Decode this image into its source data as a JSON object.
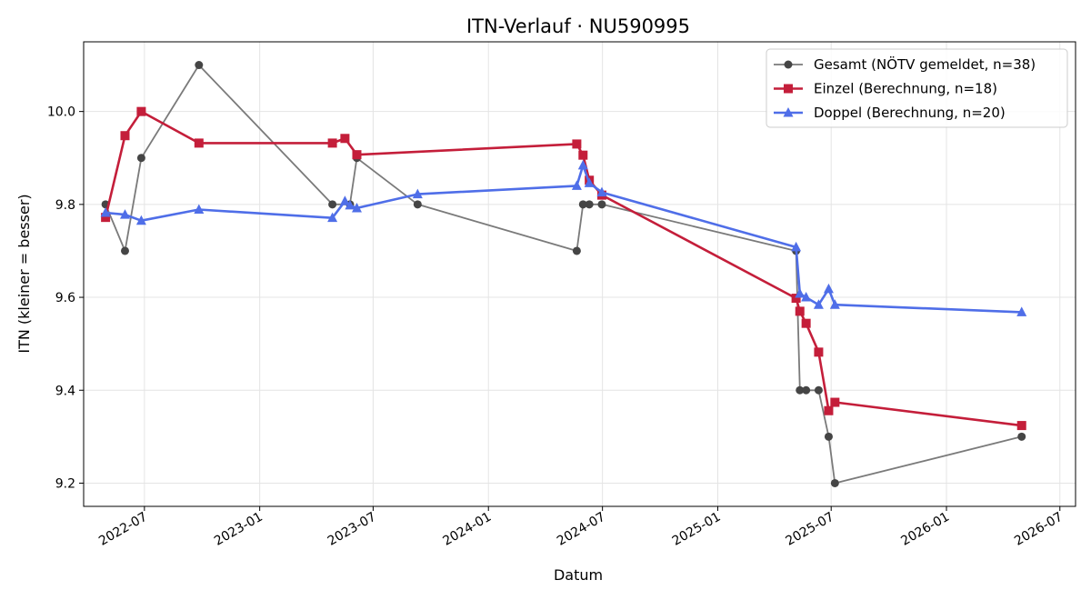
{
  "chart_data": {
    "type": "line",
    "title": "ITN-Verlauf · NU590995",
    "xlabel": "Datum",
    "ylabel": "ITN  (kleiner = besser)",
    "x_axis_kind": "date",
    "xlim": [
      "2022-03-26",
      "2026-07-26"
    ],
    "ylim": [
      9.15,
      10.15
    ],
    "x_ticks": [
      "2022-07-01",
      "2023-01-01",
      "2023-07-01",
      "2024-01-01",
      "2024-07-01",
      "2025-01-01",
      "2025-07-01",
      "2026-01-01",
      "2026-07-01"
    ],
    "x_tick_labels": [
      "2022-07",
      "2023-01",
      "2023-07",
      "2024-01",
      "2024-07",
      "2025-01",
      "2025-07",
      "2026-01",
      "2026-07"
    ],
    "y_ticks": [
      9.2,
      9.4,
      9.6,
      9.8,
      10.0
    ],
    "y_tick_labels": [
      "9.2",
      "9.4",
      "9.6",
      "9.8",
      "10.0"
    ],
    "grid": true,
    "legend_position": "top-right",
    "series": [
      {
        "name": "Gesamt (NÖTV gemeldet, n=38)",
        "color": "#7a7a7a",
        "marker_color": "#454545",
        "marker": "circle",
        "points": [
          {
            "x": "2022-04-30",
            "y": 9.8
          },
          {
            "x": "2022-05-31",
            "y": 9.7
          },
          {
            "x": "2022-06-26",
            "y": 9.9
          },
          {
            "x": "2022-09-26",
            "y": 10.1
          },
          {
            "x": "2023-04-27",
            "y": 9.8
          },
          {
            "x": "2023-05-25",
            "y": 9.8
          },
          {
            "x": "2023-06-05",
            "y": 9.9
          },
          {
            "x": "2023-09-10",
            "y": 9.8
          },
          {
            "x": "2024-05-21",
            "y": 9.7
          },
          {
            "x": "2024-05-31",
            "y": 9.8
          },
          {
            "x": "2024-06-10",
            "y": 9.8
          },
          {
            "x": "2024-06-30",
            "y": 9.8
          },
          {
            "x": "2025-05-06",
            "y": 9.7
          },
          {
            "x": "2025-05-12",
            "y": 9.4
          },
          {
            "x": "2025-05-22",
            "y": 9.4
          },
          {
            "x": "2025-06-11",
            "y": 9.4
          },
          {
            "x": "2025-06-27",
            "y": 9.3
          },
          {
            "x": "2025-07-07",
            "y": 9.2
          },
          {
            "x": "2026-05-01",
            "y": 9.3
          }
        ]
      },
      {
        "name": "Einzel (Berechnung, n=18)",
        "color": "#c41e3a",
        "marker_color": "#c41e3a",
        "marker": "square",
        "points": [
          {
            "x": "2022-04-30",
            "y": 9.772
          },
          {
            "x": "2022-05-31",
            "y": 9.948
          },
          {
            "x": "2022-06-26",
            "y": 10.0
          },
          {
            "x": "2022-09-26",
            "y": 9.932
          },
          {
            "x": "2023-04-27",
            "y": 9.932
          },
          {
            "x": "2023-05-17",
            "y": 9.942
          },
          {
            "x": "2023-06-05",
            "y": 9.907
          },
          {
            "x": "2024-05-21",
            "y": 9.93
          },
          {
            "x": "2024-05-31",
            "y": 9.906
          },
          {
            "x": "2024-06-10",
            "y": 9.852
          },
          {
            "x": "2024-06-30",
            "y": 9.82
          },
          {
            "x": "2025-05-06",
            "y": 9.598
          },
          {
            "x": "2025-05-12",
            "y": 9.57
          },
          {
            "x": "2025-05-22",
            "y": 9.544
          },
          {
            "x": "2025-06-11",
            "y": 9.482
          },
          {
            "x": "2025-06-27",
            "y": 9.356
          },
          {
            "x": "2025-07-07",
            "y": 9.374
          },
          {
            "x": "2026-05-01",
            "y": 9.324
          }
        ]
      },
      {
        "name": "Doppel (Berechnung, n=20)",
        "color": "#4f6ee8",
        "marker_color": "#4f6ee8",
        "marker": "triangle",
        "points": [
          {
            "x": "2022-04-30",
            "y": 9.782
          },
          {
            "x": "2022-05-31",
            "y": 9.778
          },
          {
            "x": "2022-06-26",
            "y": 9.765
          },
          {
            "x": "2022-09-26",
            "y": 9.789
          },
          {
            "x": "2023-04-27",
            "y": 9.771
          },
          {
            "x": "2023-05-17",
            "y": 9.807
          },
          {
            "x": "2023-05-25",
            "y": 9.798
          },
          {
            "x": "2023-06-05",
            "y": 9.792
          },
          {
            "x": "2023-09-10",
            "y": 9.822
          },
          {
            "x": "2024-05-21",
            "y": 9.84
          },
          {
            "x": "2024-05-31",
            "y": 9.884
          },
          {
            "x": "2024-06-10",
            "y": 9.846
          },
          {
            "x": "2024-06-30",
            "y": 9.826
          },
          {
            "x": "2025-05-06",
            "y": 9.708
          },
          {
            "x": "2025-05-12",
            "y": 9.608
          },
          {
            "x": "2025-05-22",
            "y": 9.6
          },
          {
            "x": "2025-06-11",
            "y": 9.584
          },
          {
            "x": "2025-06-27",
            "y": 9.618
          },
          {
            "x": "2025-07-07",
            "y": 9.584
          },
          {
            "x": "2026-05-01",
            "y": 9.568
          }
        ]
      }
    ]
  }
}
